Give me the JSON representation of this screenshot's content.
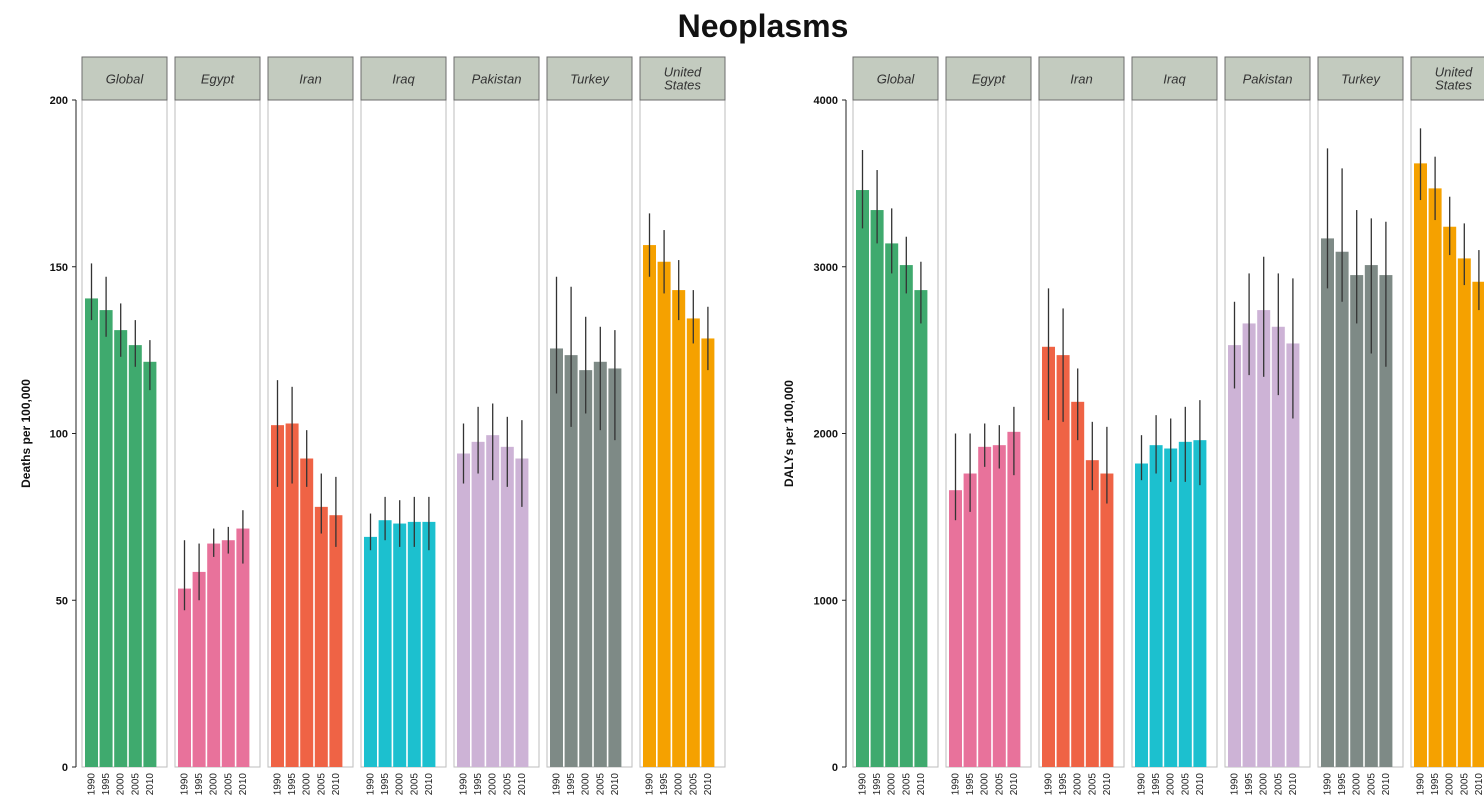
{
  "title": "Neoplasms",
  "colors": {
    "Global": "#3faa6e",
    "Egypt": "#e8729b",
    "Iran": "#ef6345",
    "Iraq": "#1cc0cf",
    "Pakistan": "#cdb3d6",
    "Turkey": "#7e8a86",
    "United States": "#f5a100",
    "strip_bg": "#c3cbbf",
    "error_bar": "#333333"
  },
  "chart_data": [
    {
      "type": "bar",
      "facets": [
        "Global",
        "Egypt",
        "Iran",
        "Iraq",
        "Pakistan",
        "Turkey",
        "United States"
      ],
      "categories": [
        "1990",
        "1995",
        "2000",
        "2005",
        "2010"
      ],
      "ylabel": "Deaths per 100,000",
      "ylim": [
        0,
        200
      ],
      "yticks": [
        "0",
        "50",
        "100",
        "150",
        "200"
      ],
      "series": [
        {
          "name": "Global",
          "values": [
            140.5,
            137,
            131,
            126.5,
            121.5
          ],
          "lower": [
            134,
            129,
            123,
            120,
            113
          ],
          "upper": [
            151,
            147,
            139,
            134,
            128
          ]
        },
        {
          "name": "Egypt",
          "values": [
            53.5,
            58.5,
            67,
            68,
            71.5
          ],
          "lower": [
            47,
            50,
            63,
            64,
            61
          ],
          "upper": [
            68,
            67,
            71.5,
            72,
            77
          ]
        },
        {
          "name": "Iran",
          "values": [
            102.5,
            103,
            92.5,
            78,
            75.5
          ],
          "lower": [
            84,
            85,
            84,
            70,
            66
          ],
          "upper": [
            116,
            114,
            101,
            88,
            87
          ]
        },
        {
          "name": "Iraq",
          "values": [
            69,
            74,
            73,
            73.5,
            73.5
          ],
          "lower": [
            65,
            68,
            66,
            66,
            65
          ],
          "upper": [
            76,
            81,
            80,
            81,
            81
          ]
        },
        {
          "name": "Pakistan",
          "values": [
            94,
            97.5,
            99.5,
            96,
            92.5
          ],
          "lower": [
            85,
            88,
            86,
            84,
            78
          ],
          "upper": [
            103,
            108,
            109,
            105,
            104
          ]
        },
        {
          "name": "Turkey",
          "values": [
            125.5,
            123.5,
            119,
            121.5,
            119.5
          ],
          "lower": [
            112,
            102,
            106,
            101,
            98
          ],
          "upper": [
            147,
            144,
            135,
            132,
            131
          ]
        },
        {
          "name": "United States",
          "values": [
            156.5,
            151.5,
            143,
            134.5,
            128.5
          ],
          "lower": [
            147,
            142,
            134,
            127,
            119
          ],
          "upper": [
            166,
            161,
            152,
            143,
            138
          ]
        }
      ]
    },
    {
      "type": "bar",
      "facets": [
        "Global",
        "Egypt",
        "Iran",
        "Iraq",
        "Pakistan",
        "Turkey",
        "United States"
      ],
      "categories": [
        "1990",
        "1995",
        "2000",
        "2005",
        "2010"
      ],
      "ylabel": "DALYs per 100,000",
      "ylim": [
        0,
        4000
      ],
      "yticks": [
        "0",
        "1000",
        "2000",
        "3000",
        "4000"
      ],
      "series": [
        {
          "name": "Global",
          "values": [
            3460,
            3340,
            3140,
            3010,
            2860
          ],
          "lower": [
            3230,
            3140,
            2960,
            2840,
            2660
          ],
          "upper": [
            3700,
            3580,
            3350,
            3180,
            3030
          ]
        },
        {
          "name": "Egypt",
          "values": [
            1660,
            1760,
            1920,
            1930,
            2010
          ],
          "lower": [
            1480,
            1530,
            1800,
            1790,
            1750
          ],
          "upper": [
            2000,
            2000,
            2060,
            2050,
            2160
          ]
        },
        {
          "name": "Iran",
          "values": [
            2520,
            2470,
            2190,
            1840,
            1760
          ],
          "lower": [
            2080,
            2070,
            1960,
            1660,
            1580
          ],
          "upper": [
            2870,
            2750,
            2390,
            2070,
            2040
          ]
        },
        {
          "name": "Iraq",
          "values": [
            1820,
            1930,
            1910,
            1950,
            1960
          ],
          "lower": [
            1720,
            1760,
            1710,
            1710,
            1690
          ],
          "upper": [
            1990,
            2110,
            2090,
            2160,
            2200
          ]
        },
        {
          "name": "Pakistan",
          "values": [
            2530,
            2660,
            2740,
            2640,
            2540
          ],
          "lower": [
            2270,
            2350,
            2340,
            2230,
            2090
          ],
          "upper": [
            2790,
            2960,
            3060,
            2960,
            2930
          ]
        },
        {
          "name": "Turkey",
          "values": [
            3170,
            3090,
            2950,
            3010,
            2950
          ],
          "lower": [
            2870,
            2790,
            2660,
            2480,
            2400
          ],
          "upper": [
            3710,
            3590,
            3340,
            3290,
            3270
          ]
        },
        {
          "name": "United States",
          "values": [
            3620,
            3470,
            3240,
            3050,
            2910
          ],
          "lower": [
            3400,
            3280,
            3070,
            2890,
            2740
          ],
          "upper": [
            3830,
            3660,
            3420,
            3260,
            3100
          ]
        }
      ]
    }
  ]
}
